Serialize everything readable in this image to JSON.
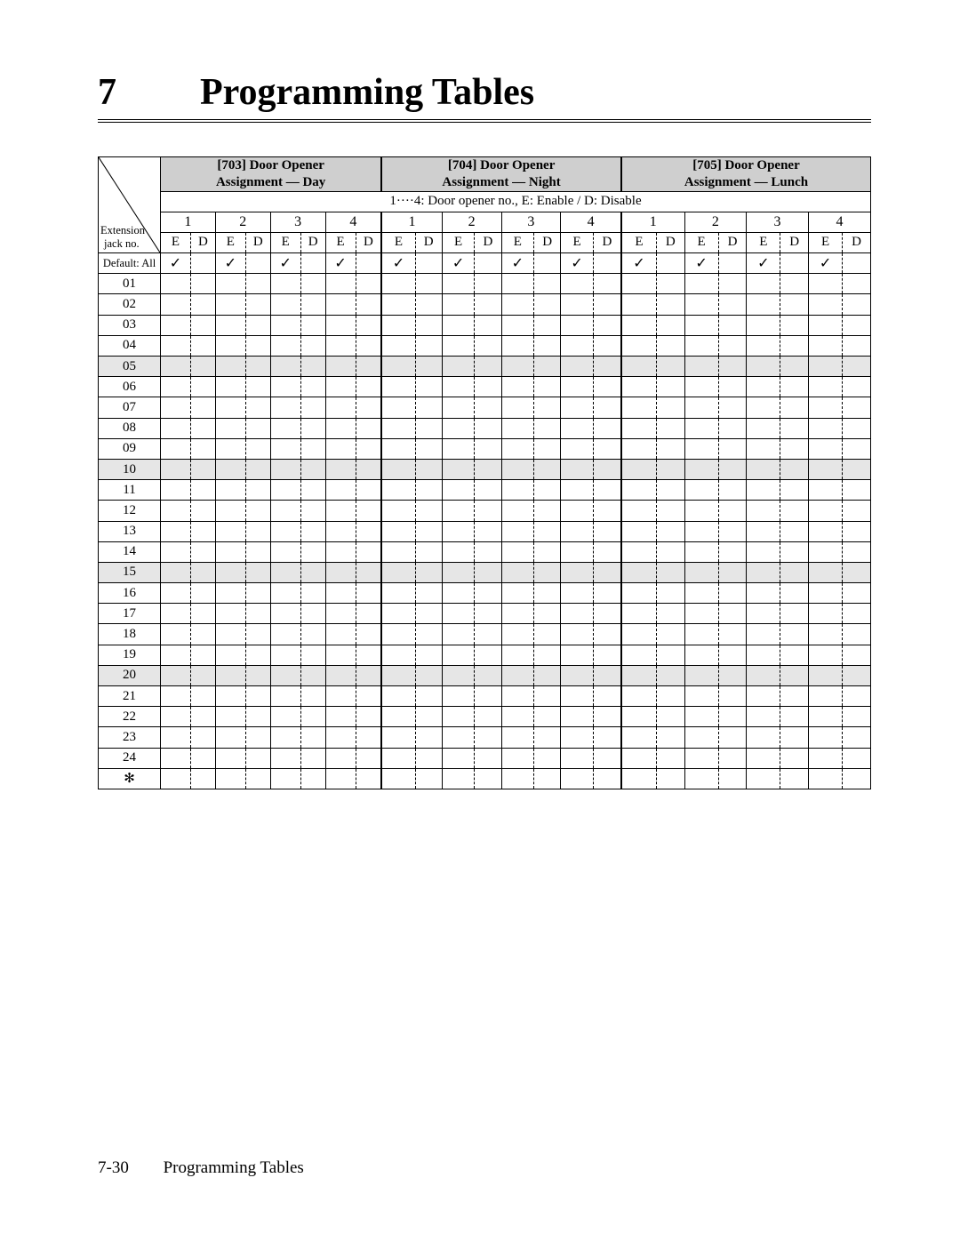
{
  "chapter": {
    "number": "7",
    "title": "Programming Tables"
  },
  "footer": {
    "page": "7-30",
    "title": "Programming Tables"
  },
  "table": {
    "diag_label": "",
    "ext_label_line1": "Extension",
    "ext_label_line2": "jack no.",
    "sections": [
      {
        "code": "[703]",
        "name": "Door Opener",
        "sub": "Assignment — Day"
      },
      {
        "code": "[704]",
        "name": "Door Opener",
        "sub": "Assignment — Night"
      },
      {
        "code": "[705]",
        "name": "Door Opener",
        "sub": "Assignment — Lunch"
      }
    ],
    "legend": "1····4: Door opener no., E: Enable / D: Disable",
    "opener_numbers": [
      "1",
      "2",
      "3",
      "4"
    ],
    "ed_labels": {
      "e": "E",
      "d": "D"
    },
    "default_row_label": "Default: All",
    "check_glyph": "✓",
    "row_labels": [
      "01",
      "02",
      "03",
      "04",
      "05",
      "06",
      "07",
      "08",
      "09",
      "10",
      "11",
      "12",
      "13",
      "14",
      "15",
      "16",
      "17",
      "18",
      "19",
      "20",
      "21",
      "22",
      "23",
      "24"
    ],
    "shaded_rows": [
      "05",
      "10",
      "15",
      "20"
    ],
    "extra_row_glyph": "✻",
    "colors": {
      "header_bg": "#cfcfcf",
      "shaded_bg": "#e6e6e6",
      "border": "#000000",
      "page_bg": "#ffffff"
    }
  }
}
